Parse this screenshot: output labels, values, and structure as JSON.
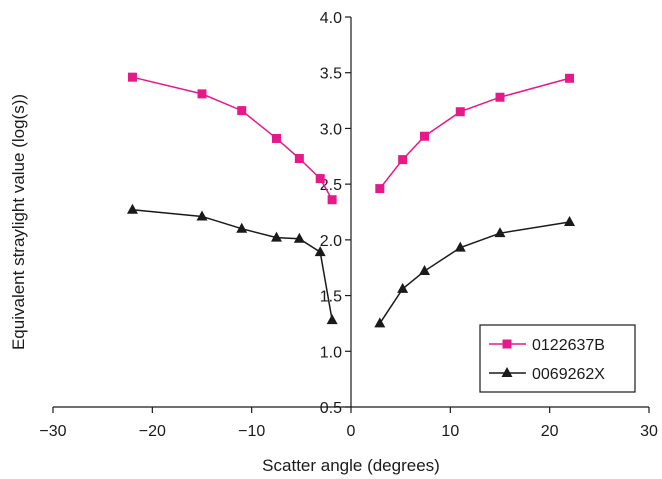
{
  "chart_data": {
    "type": "line",
    "title": "",
    "xlabel": "Scatter angle (degrees)",
    "ylabel": "Equivalent straylight value (log(s))",
    "xlim": [
      -30,
      30
    ],
    "ylim": [
      0.5,
      4.0
    ],
    "xticks": [
      -30,
      -20,
      -10,
      0,
      10,
      20,
      30
    ],
    "xtick_labels": [
      "−30",
      "−20",
      "−10",
      "0",
      "10",
      "20",
      "30"
    ],
    "yticks": [
      0.5,
      1.0,
      1.5,
      2.0,
      2.5,
      3.0,
      3.5,
      4.0
    ],
    "ytick_labels": [
      "0.5",
      "1.0",
      "1.5",
      "2.0",
      "2.5",
      "3.0",
      "3.5",
      "4.0"
    ],
    "grid": false,
    "legend_position": "bottom-right",
    "series": [
      {
        "name": "0122637B",
        "color": "#e5198a",
        "marker": "square",
        "segments": [
          {
            "x": [
              -22,
              -15,
              -11,
              -7.5,
              -5.2,
              -3.1,
              -1.9
            ],
            "y": [
              3.46,
              3.31,
              3.16,
              2.91,
              2.73,
              2.55,
              2.36
            ]
          },
          {
            "x": [
              2.9,
              5.2,
              7.4,
              11,
              15,
              22
            ],
            "y": [
              2.46,
              2.72,
              2.93,
              3.15,
              3.28,
              3.45
            ]
          }
        ]
      },
      {
        "name": "0069262X",
        "color": "#1a1a1a",
        "marker": "triangle",
        "segments": [
          {
            "x": [
              -22,
              -15,
              -11,
              -7.5,
              -5.2,
              -3.1,
              -1.9
            ],
            "y": [
              2.27,
              2.21,
              2.1,
              2.02,
              2.01,
              1.89,
              1.28
            ]
          },
          {
            "x": [
              2.9,
              5.2,
              7.4,
              11,
              15,
              22
            ],
            "y": [
              1.25,
              1.56,
              1.72,
              1.93,
              2.06,
              2.16
            ]
          }
        ]
      }
    ]
  }
}
